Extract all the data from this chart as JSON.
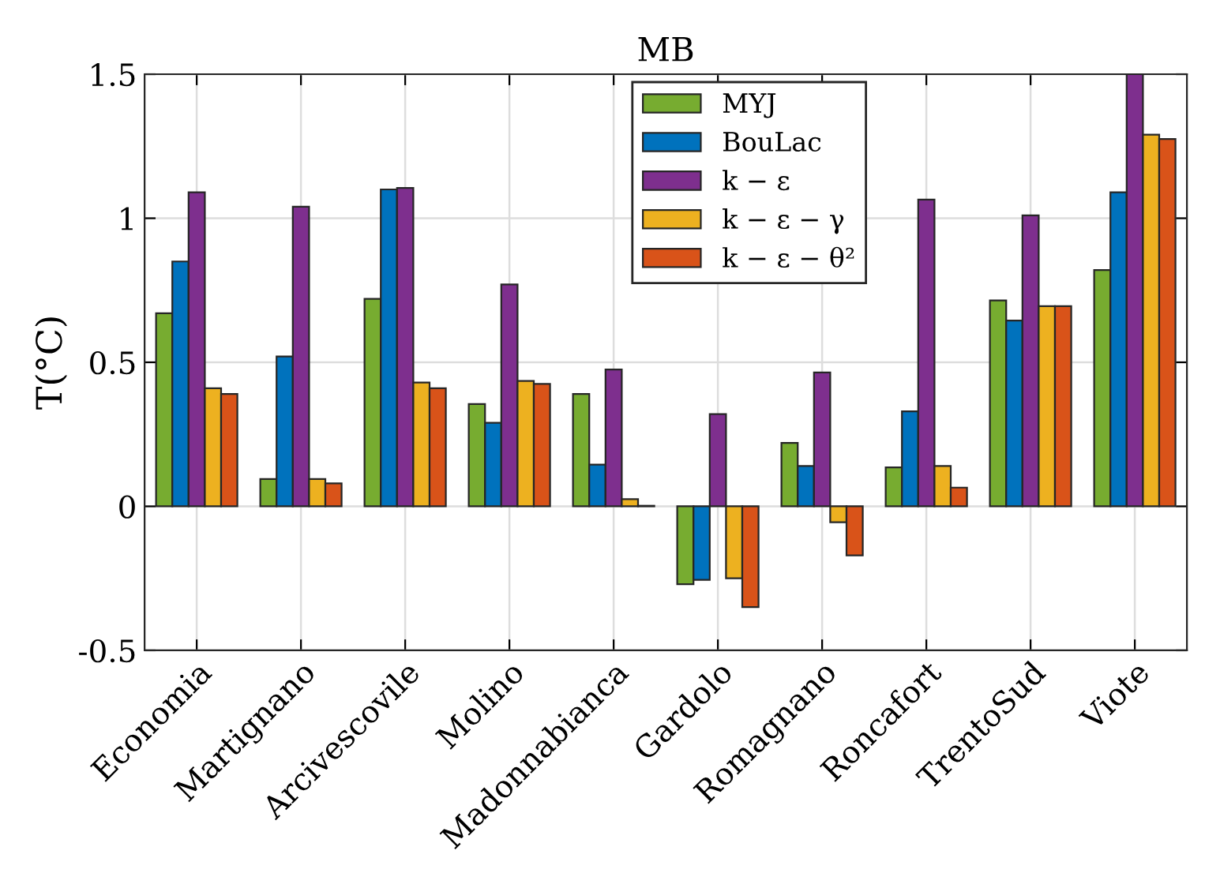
{
  "chart_data": {
    "type": "bar",
    "title": "MB",
    "ylabel": "T(°C)",
    "categories": [
      "Economia",
      "Martignano",
      "Arcivescovile",
      "Molino",
      "Madonnabianca",
      "Gardolo",
      "Romagnano",
      "Roncafort",
      "TrentoSud",
      "Viote"
    ],
    "series": [
      {
        "name": "MYJ",
        "color": "#77ac30",
        "values": [
          0.67,
          0.095,
          0.72,
          0.355,
          0.39,
          -0.27,
          0.22,
          0.135,
          0.715,
          0.82
        ]
      },
      {
        "name": "BouLac",
        "color": "#0072bd",
        "values": [
          0.85,
          0.52,
          1.1,
          0.29,
          0.145,
          -0.255,
          0.14,
          0.33,
          0.645,
          1.09
        ]
      },
      {
        "name": "k − ε",
        "color": "#7e2f8e",
        "values": [
          1.09,
          1.04,
          1.105,
          0.77,
          0.475,
          0.32,
          0.465,
          1.065,
          1.01,
          1.5
        ]
      },
      {
        "name": "k − ε − γ",
        "color": "#edb120",
        "values": [
          0.41,
          0.095,
          0.43,
          0.435,
          0.025,
          -0.25,
          -0.055,
          0.14,
          0.695,
          1.29
        ]
      },
      {
        "name": "k − ε − θ²",
        "color": "#d95319",
        "values": [
          0.39,
          0.08,
          0.41,
          0.425,
          0.002,
          -0.35,
          -0.17,
          0.065,
          0.695,
          1.275
        ]
      }
    ],
    "ylim": [
      -0.5,
      1.5
    ],
    "yticks": [
      -0.5,
      0,
      0.5,
      1,
      1.5
    ],
    "grid": true,
    "legend": "top"
  }
}
